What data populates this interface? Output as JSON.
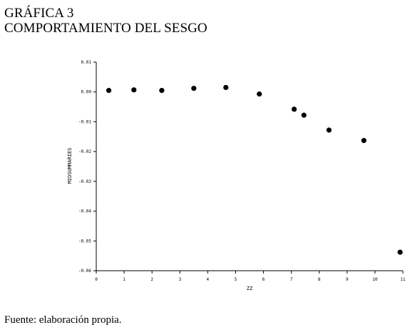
{
  "heading": {
    "figure_number": "GRÁFICA 3",
    "figure_title": "COMPORTAMIENTO DEL SESGO"
  },
  "source_note": "Fuente: elaboración propia.",
  "chart_data": {
    "type": "scatter",
    "xlabel": "ZZ",
    "ylabel": "MIDSUMMARIES",
    "xlim": [
      0,
      11
    ],
    "ylim": [
      -0.06,
      0.01
    ],
    "xticks": [
      "0",
      "1",
      "2",
      "3",
      "4",
      "5",
      "6",
      "7",
      "8",
      "9",
      "10",
      "11"
    ],
    "yticks": [
      "0.01",
      "0.00",
      "-0.01",
      "-0.02",
      "-0.03",
      "-0.04",
      "-0.05",
      "-0.06"
    ],
    "ytick_values": [
      0.01,
      0.0,
      -0.01,
      -0.02,
      -0.03,
      -0.04,
      -0.05,
      -0.06
    ],
    "grid": false,
    "series": [
      {
        "points": [
          {
            "x": 0.45,
            "y": 0.0005
          },
          {
            "x": 1.35,
            "y": 0.0007
          },
          {
            "x": 2.35,
            "y": 0.0005
          },
          {
            "x": 3.5,
            "y": 0.0012
          },
          {
            "x": 4.65,
            "y": 0.0015
          },
          {
            "x": 5.85,
            "y": -0.0007
          },
          {
            "x": 7.1,
            "y": -0.0058
          },
          {
            "x": 7.45,
            "y": -0.0078
          },
          {
            "x": 8.35,
            "y": -0.0128
          },
          {
            "x": 9.6,
            "y": -0.0163
          },
          {
            "x": 10.9,
            "y": -0.0538
          }
        ]
      }
    ]
  }
}
